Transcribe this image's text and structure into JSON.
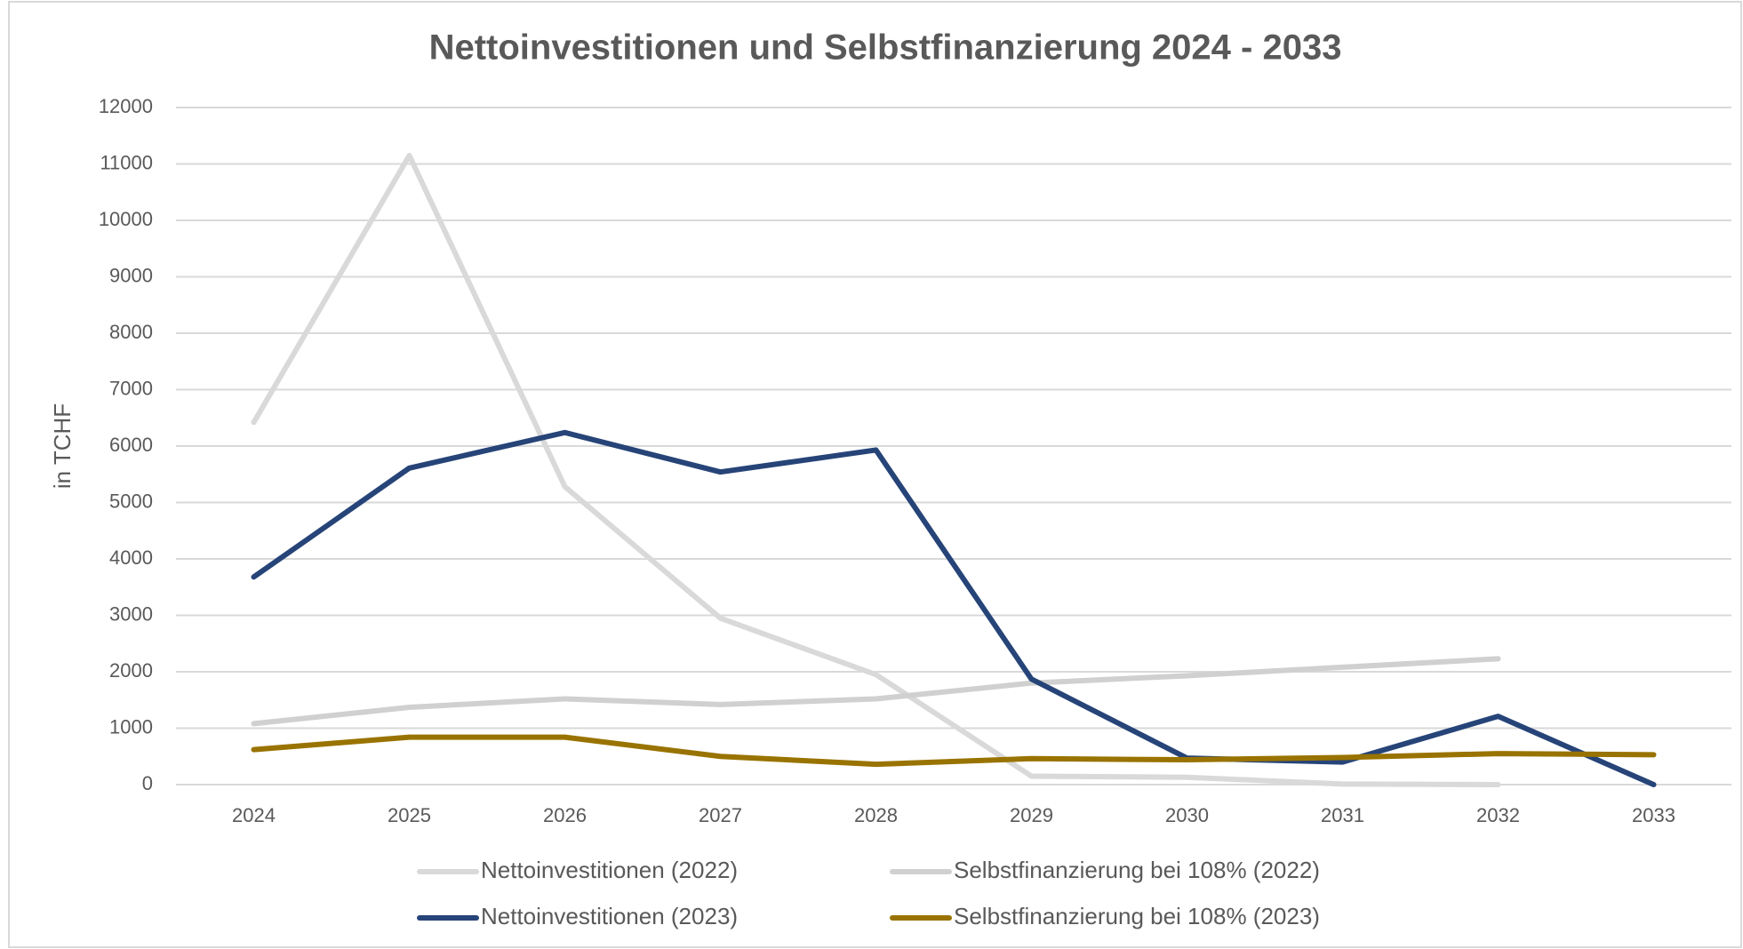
{
  "chart_data": {
    "type": "line",
    "title": "Nettoinvestitionen und Selbstfinanzierung 2024 - 2033",
    "y_label": "in TCHF",
    "categories": [
      "2024",
      "2025",
      "2026",
      "2027",
      "2028",
      "2029",
      "2030",
      "2031",
      "2032",
      "2033"
    ],
    "series": [
      {
        "name": "Nettoinvestitionen (2022)",
        "color": "#d9d9d9",
        "values": [
          6420,
          11150,
          5280,
          2950,
          1950,
          150,
          130,
          10,
          0,
          null
        ]
      },
      {
        "name": "Selbstfinanzierung bei 108% (2022)",
        "color": "#d0d0d0",
        "values": [
          1080,
          1370,
          1520,
          1420,
          1520,
          1800,
          1930,
          2080,
          2230,
          null
        ]
      },
      {
        "name": "Nettoinvestitionen (2023)",
        "color": "#264478",
        "values": [
          3680,
          5610,
          6240,
          5540,
          5930,
          1870,
          470,
          400,
          1210,
          0
        ]
      },
      {
        "name": "Selbstfinanzierung bei 108% (2023)",
        "color": "#997300",
        "values": [
          620,
          840,
          840,
          500,
          360,
          460,
          440,
          480,
          550,
          530
        ]
      }
    ],
    "ylim": [
      0,
      12000
    ],
    "yticks": [
      0,
      1000,
      2000,
      3000,
      4000,
      5000,
      6000,
      7000,
      8000,
      9000,
      10000,
      11000,
      12000
    ],
    "grid": true,
    "legend": "bottom"
  }
}
